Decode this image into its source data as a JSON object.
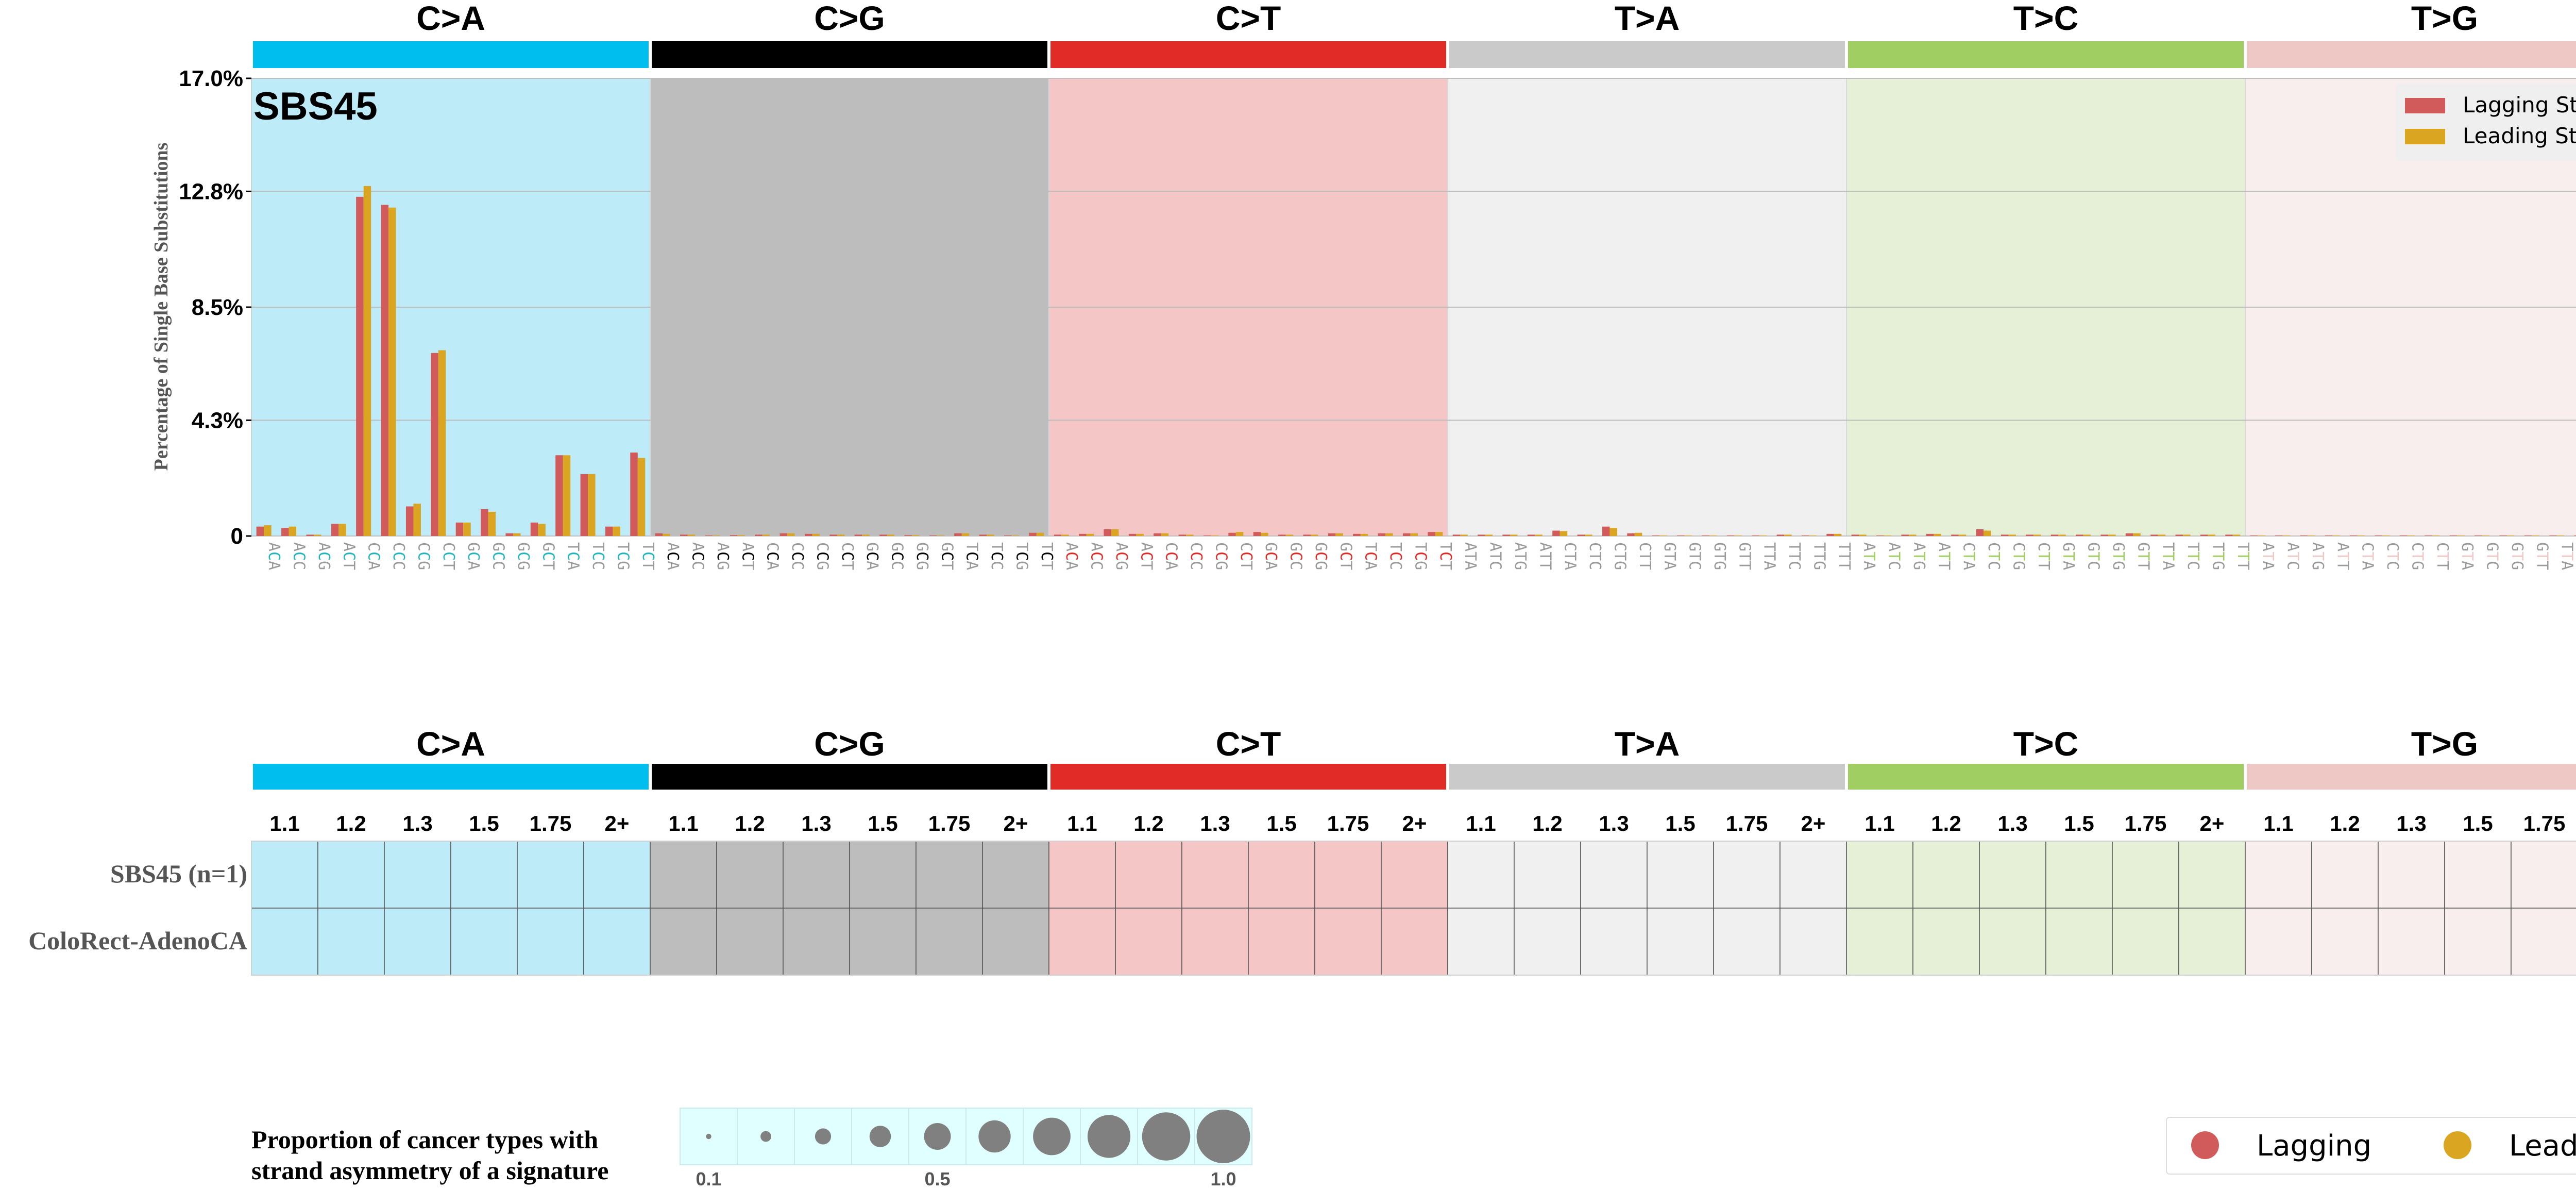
{
  "chart_data": {
    "type": "bar",
    "title": "SBS45",
    "ylabel": "Percentage of Single Base Substitutions",
    "ylim": [
      0,
      17.0
    ],
    "yticks": [
      0,
      4.3,
      8.5,
      12.8,
      17.0
    ],
    "ytick_labels": [
      "0",
      "4.3%",
      "8.5%",
      "12.8%",
      "17.0%"
    ],
    "grid": "horizontal",
    "legend_position": "top-right",
    "legend": [
      "Lagging Strand",
      "Leading Strand"
    ],
    "mutation_types": [
      "C>A",
      "C>G",
      "C>T",
      "T>A",
      "T>C",
      "T>G"
    ],
    "type_colors": [
      "#00BFEF",
      "#000000",
      "#E12B26",
      "#CACACA",
      "#A1CE63",
      "#EDC8C4"
    ],
    "panel_bg_colors": [
      "#BDEBF8",
      "#BDBDBD",
      "#F5C6C6",
      "#F0F0F0",
      "#E5F0D7",
      "#F8EEED"
    ],
    "contexts": [
      "ACA",
      "ACC",
      "ACG",
      "ACT",
      "CCA",
      "CCC",
      "CCG",
      "CCT",
      "GCA",
      "GCC",
      "GCG",
      "GCT",
      "TCA",
      "TCC",
      "TCG",
      "TCT"
    ],
    "t_contexts": [
      "ATA",
      "ATC",
      "ATG",
      "ATT",
      "CTA",
      "CTC",
      "CTG",
      "CTT",
      "GTA",
      "GTC",
      "GTG",
      "GTT",
      "TTA",
      "TTC",
      "TTG",
      "TTT"
    ],
    "series": [
      {
        "name": "Lagging Strand",
        "color": "#D15B5B",
        "values": [
          [
            0.35,
            0.3,
            0.05,
            0.45,
            12.6,
            12.3,
            1.1,
            6.8,
            0.5,
            1.0,
            0.1,
            0.5,
            3.0,
            2.3,
            0.35,
            3.1
          ],
          [
            0.1,
            0.05,
            0.02,
            0.03,
            0.05,
            0.1,
            0.08,
            0.05,
            0.05,
            0.05,
            0.03,
            0.02,
            0.1,
            0.05,
            0.02,
            0.12
          ],
          [
            0.05,
            0.08,
            0.25,
            0.08,
            0.1,
            0.05,
            0.02,
            0.12,
            0.15,
            0.05,
            0.05,
            0.1,
            0.08,
            0.1,
            0.1,
            0.15
          ],
          [
            0.05,
            0.05,
            0.05,
            0.05,
            0.2,
            0.05,
            0.35,
            0.1,
            0.02,
            0.02,
            0.02,
            0.02,
            0.02,
            0.05,
            0.02,
            0.08
          ],
          [
            0.05,
            0.02,
            0.05,
            0.08,
            0.05,
            0.25,
            0.05,
            0.05,
            0.05,
            0.05,
            0.05,
            0.1,
            0.05,
            0.05,
            0.05,
            0.05
          ],
          [
            0.02,
            0.02,
            0.02,
            0.02,
            0.02,
            0.02,
            0.02,
            0.02,
            0.02,
            0.02,
            0.02,
            0.02,
            0.02,
            0.02,
            0.02,
            0.02
          ]
        ]
      },
      {
        "name": "Leading Strand",
        "color": "#DAA520",
        "values": [
          [
            0.4,
            0.35,
            0.05,
            0.45,
            13.0,
            12.2,
            1.2,
            6.9,
            0.5,
            0.9,
            0.1,
            0.45,
            3.0,
            2.3,
            0.35,
            2.9
          ],
          [
            0.08,
            0.05,
            0.02,
            0.03,
            0.05,
            0.1,
            0.08,
            0.05,
            0.05,
            0.05,
            0.03,
            0.02,
            0.1,
            0.05,
            0.02,
            0.12
          ],
          [
            0.05,
            0.08,
            0.25,
            0.08,
            0.1,
            0.05,
            0.02,
            0.15,
            0.12,
            0.05,
            0.05,
            0.1,
            0.08,
            0.1,
            0.1,
            0.15
          ],
          [
            0.05,
            0.05,
            0.05,
            0.05,
            0.18,
            0.05,
            0.3,
            0.12,
            0.02,
            0.02,
            0.02,
            0.02,
            0.02,
            0.05,
            0.02,
            0.08
          ],
          [
            0.05,
            0.02,
            0.05,
            0.08,
            0.05,
            0.2,
            0.05,
            0.05,
            0.05,
            0.05,
            0.05,
            0.1,
            0.05,
            0.05,
            0.05,
            0.05
          ],
          [
            0.02,
            0.02,
            0.02,
            0.02,
            0.02,
            0.02,
            0.02,
            0.02,
            0.02,
            0.02,
            0.02,
            0.02,
            0.02,
            0.02,
            0.02,
            0.02
          ]
        ]
      }
    ],
    "asymmetry_grid": {
      "bins": [
        "1.1",
        "1.2",
        "1.3",
        "1.5",
        "1.75",
        "2+"
      ],
      "rows": [
        "SBS45 (n=1)",
        "ColoRect-AdenoCA"
      ]
    },
    "size_legend": {
      "title_lines": [
        "Proportion of cancer types with",
        "strand asymmetry of a signature"
      ],
      "labels": [
        "0.1",
        "0.5",
        "1.0"
      ],
      "values": [
        0.1,
        0.2,
        0.3,
        0.4,
        0.5,
        0.6,
        0.7,
        0.8,
        0.9,
        1.0
      ],
      "bg_color": "#E0FFFF",
      "circle_color": "#808080"
    },
    "bottom_legend": [
      {
        "label": "Lagging",
        "color": "#D15B5B"
      },
      {
        "label": "Leading",
        "color": "#DAA520"
      }
    ]
  }
}
